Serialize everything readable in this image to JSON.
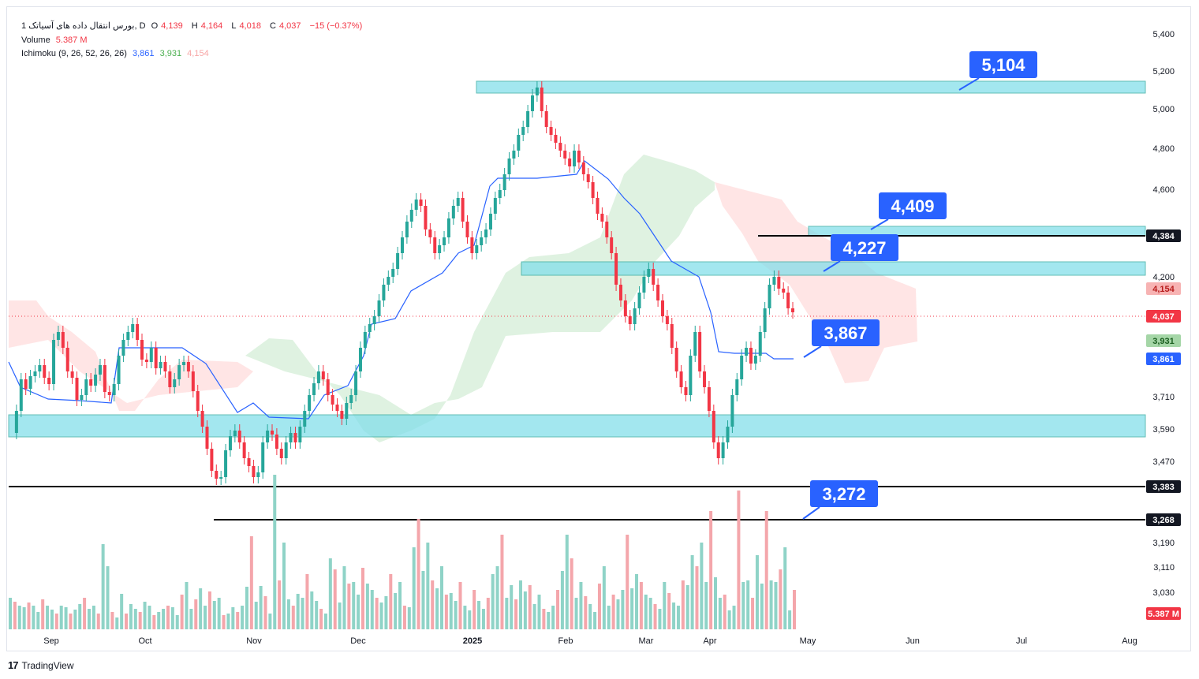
{
  "header": {
    "symbol": "1 بورس انتقال داده های آسیاتک, D",
    "open_label": "O",
    "open": "4,139",
    "high_label": "H",
    "high": "4,164",
    "low_label": "L",
    "low": "4,018",
    "close_label": "C",
    "close": "4,037",
    "change": "−15 (−0.37%)",
    "volume_label": "Volume",
    "volume_value": "5.387 M",
    "ichimoku_label": "Ichimoku (9, 26, 52, 26, 26)",
    "ichimoku_v1": "3,861",
    "ichimoku_v2": "3,931",
    "ichimoku_v3": "4,154"
  },
  "footer": {
    "brand": "TradingView",
    "logo": "17"
  },
  "colors": {
    "up": "#26a69a",
    "down": "#f23645",
    "zone": "#80deea",
    "zone_border": "#26a69a",
    "kijun": "#2962ff",
    "cloud_bull": "#c8e6c9",
    "cloud_bear": "#ffcdd2",
    "callout": "#2962ff",
    "vol_up": "#8fd3c7",
    "vol_down": "#f4a6ab"
  },
  "chart_data": {
    "type": "candlestick",
    "y_ticks": [
      "5,400",
      "5,200",
      "5,000",
      "4,800",
      "4,600",
      "4,200",
      "3,710",
      "3,590",
      "3,470",
      "3,190",
      "3,110",
      "3,030"
    ],
    "x_ticks": [
      "Sep",
      "Oct",
      "Nov",
      "Dec",
      "2025",
      "Feb",
      "Mar",
      "Apr",
      "May",
      "Jun",
      "Jul",
      "Aug"
    ],
    "price_tags": [
      {
        "label": "4,384",
        "kind": "black"
      },
      {
        "label": "4,154",
        "kind": "pink"
      },
      {
        "label": "4,037",
        "kind": "red"
      },
      {
        "label": "3,931",
        "kind": "green"
      },
      {
        "label": "3,861",
        "kind": "blue"
      },
      {
        "label": "3,383",
        "kind": "black"
      },
      {
        "label": "3,268",
        "kind": "black"
      },
      {
        "label": "5.387 M",
        "kind": "red"
      }
    ],
    "callouts": [
      "5,104",
      "4,409",
      "4,227",
      "3,867",
      "3,272"
    ],
    "horizontal_lines": [
      "4,384",
      "3,383",
      "3,268"
    ],
    "zones": [
      {
        "name": "zone-5100"
      },
      {
        "name": "zone-4400"
      },
      {
        "name": "zone-4227"
      },
      {
        "name": "zone-3600"
      }
    ],
    "last_price": "4,037",
    "series": [
      {
        "name": "Volume"
      },
      {
        "name": "Ichimoku"
      }
    ]
  }
}
